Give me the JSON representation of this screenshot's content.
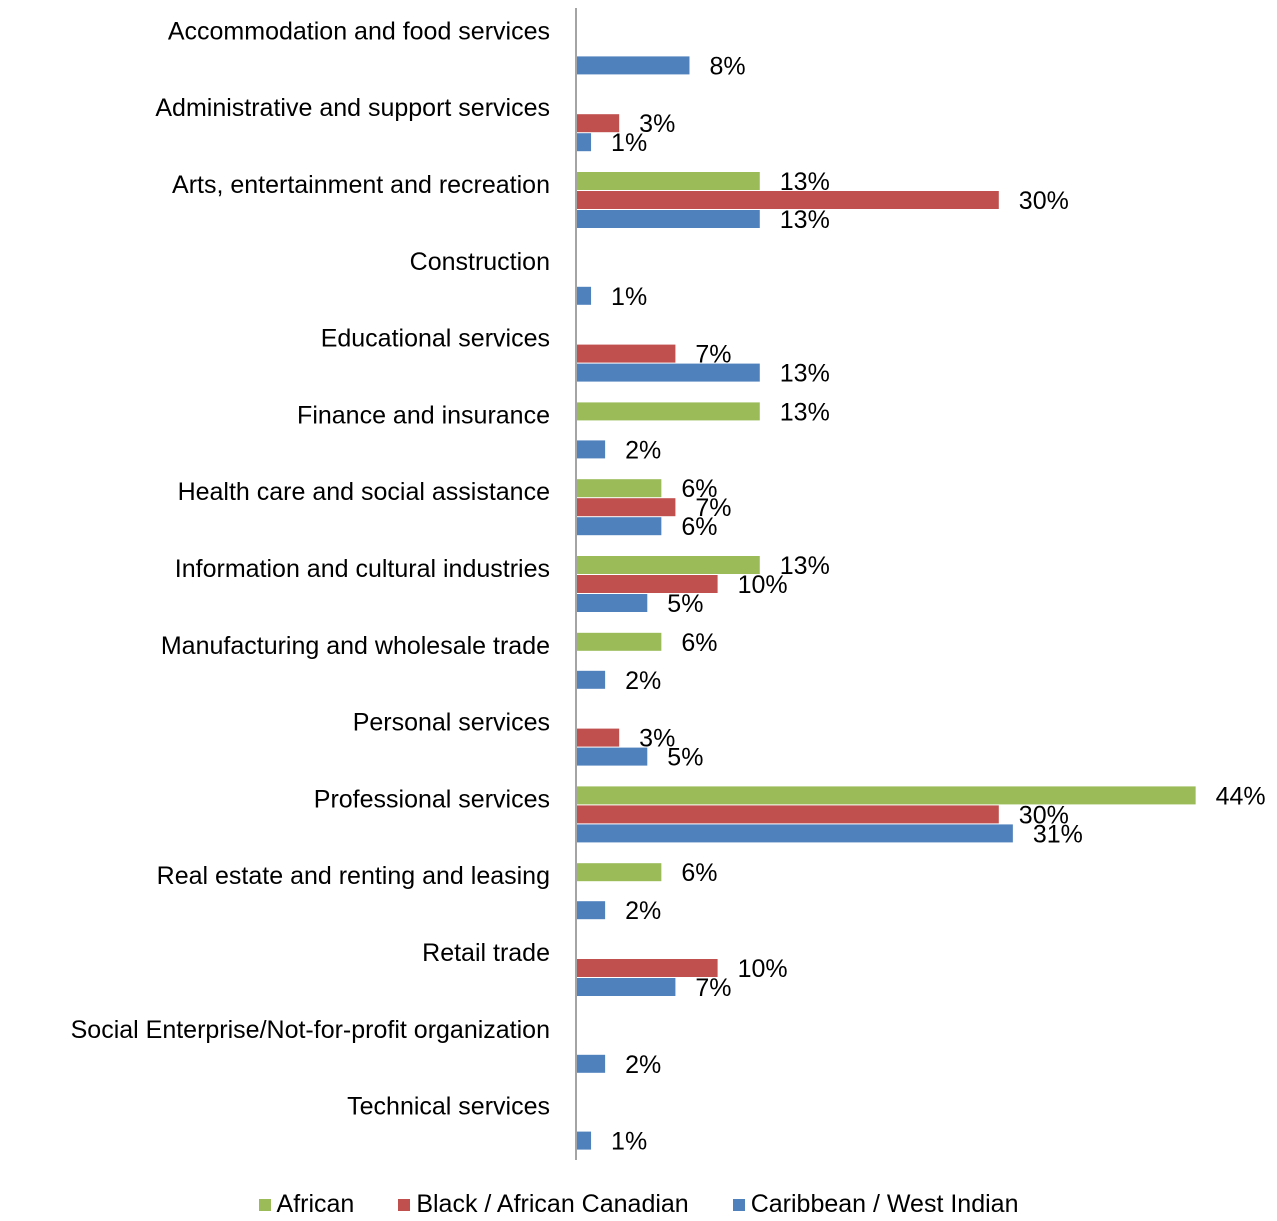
{
  "chart_data": {
    "type": "bar",
    "orientation": "horizontal",
    "categories": [
      "Accommodation and food services",
      "Administrative and support services",
      "Arts, entertainment and recreation",
      "Construction ",
      "Educational services",
      "Finance and insurance",
      "Health care and social assistance",
      "Information and cultural industries",
      "Manufacturing and wholesale trade",
      "Personal services",
      "Professional services",
      "Real estate and renting and leasing",
      "Retail trade",
      "Social Enterprise/Not-for-profit organization",
      "Technical services"
    ],
    "series": [
      {
        "name": "African",
        "color": "#9BBB59",
        "values": [
          null,
          null,
          13,
          null,
          null,
          13,
          6,
          13,
          6,
          null,
          44,
          6,
          null,
          null,
          null
        ]
      },
      {
        "name": "Black / African Canadian",
        "color": "#C0504D",
        "values": [
          null,
          3,
          30,
          null,
          7,
          null,
          7,
          10,
          null,
          3,
          30,
          null,
          10,
          null,
          null
        ]
      },
      {
        "name": "Caribbean / West Indian",
        "color": "#4F81BD",
        "values": [
          8,
          1,
          13,
          1,
          13,
          2,
          6,
          5,
          2,
          5,
          31,
          2,
          7,
          2,
          1
        ]
      }
    ],
    "value_suffix": "%",
    "xlim": [
      0,
      45
    ],
    "legend_position": "bottom",
    "grid": false
  }
}
